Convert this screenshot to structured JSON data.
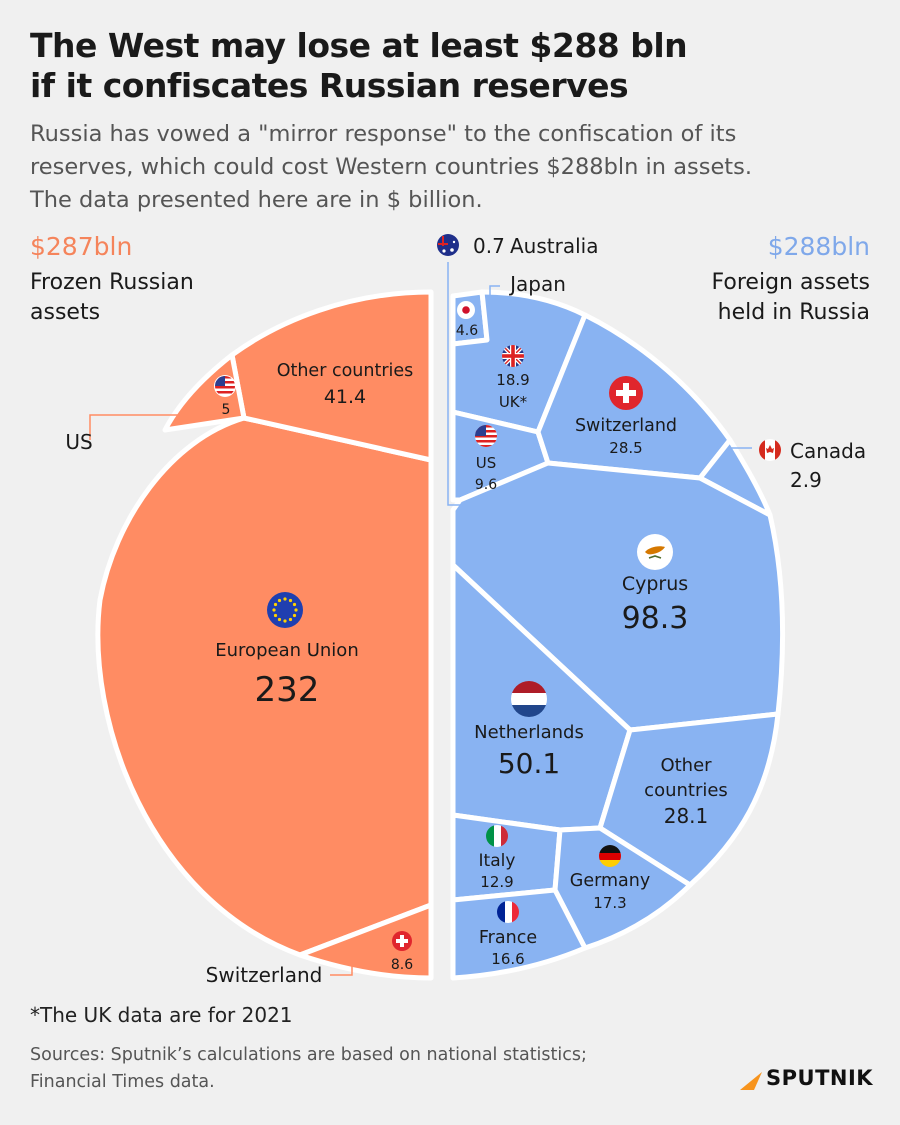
{
  "title": [
    "The West may lose at least $288 bln",
    "if it confiscates Russian reserves"
  ],
  "subtitle": [
    "Russia has vowed a \"mirror response\" to the confiscation of its",
    "reserves, which could cost Western countries $288bln in assets.",
    "The data presented here are in $ billion."
  ],
  "left_side": {
    "total": "$287bln",
    "desc": [
      "Frozen Russian",
      "assets"
    ]
  },
  "right_side": {
    "total": "$288bln",
    "desc": [
      "Foreign assets",
      "held in Russia"
    ]
  },
  "colors": {
    "left": "#ff8c63",
    "right": "#89b3f2",
    "border": "#ffffff",
    "title": "#1a1a1a"
  },
  "chart_data": {
    "type": "voronoi-treemap",
    "series": [
      {
        "name": "Frozen Russian assets",
        "total": "$287bln",
        "items": [
          {
            "label": "European Union",
            "value": 232,
            "value_text": "232",
            "icon": "eu-flag-icon"
          },
          {
            "label": "Other countries",
            "value": 41.4,
            "value_text": "41.4"
          },
          {
            "label": "Switzerland",
            "value": 8.6,
            "value_text": "8.6",
            "icon": "swiss-flag-icon"
          },
          {
            "label": "US",
            "value": 5,
            "value_text": "5",
            "icon": "us-flag-icon"
          }
        ]
      },
      {
        "name": "Foreign assets held in Russia",
        "total": "$288bln",
        "items": [
          {
            "label": "Cyprus",
            "value": 98.3,
            "value_text": "98.3",
            "icon": "cyprus-flag-icon"
          },
          {
            "label": "Netherlands",
            "value": 50.1,
            "value_text": "50.1",
            "icon": "netherlands-flag-icon"
          },
          {
            "label": "Switzerland",
            "value": 28.5,
            "value_text": "28.5",
            "icon": "swiss-flag-icon"
          },
          {
            "label": "Other countries",
            "value": 28.1,
            "value_text": "28.1"
          },
          {
            "label": "UK*",
            "value": 18.9,
            "value_text": "18.9",
            "icon": "uk-flag-icon"
          },
          {
            "label": "Germany",
            "value": 17.3,
            "value_text": "17.3",
            "icon": "germany-flag-icon"
          },
          {
            "label": "France",
            "value": 16.6,
            "value_text": "16.6",
            "icon": "france-flag-icon"
          },
          {
            "label": "Italy",
            "value": 12.9,
            "value_text": "12.9",
            "icon": "italy-flag-icon"
          },
          {
            "label": "US",
            "value": 9.6,
            "value_text": "9.6",
            "icon": "us-flag-icon"
          },
          {
            "label": "Japan",
            "value": 4.6,
            "value_text": "4.6",
            "icon": "japan-flag-icon"
          },
          {
            "label": "Canada",
            "value": 2.9,
            "value_text": "2.9",
            "icon": "canada-flag-icon"
          },
          {
            "label": "Australia",
            "value": 0.7,
            "value_text": "0.7",
            "icon": "australia-flag-icon"
          }
        ]
      }
    ]
  },
  "footnote": "*The UK data are for 2021",
  "sources": [
    "Sources: Sputnik’s calculations are based on national statistics;",
    "Financial Times data."
  ],
  "brand": "SPUTNIK"
}
